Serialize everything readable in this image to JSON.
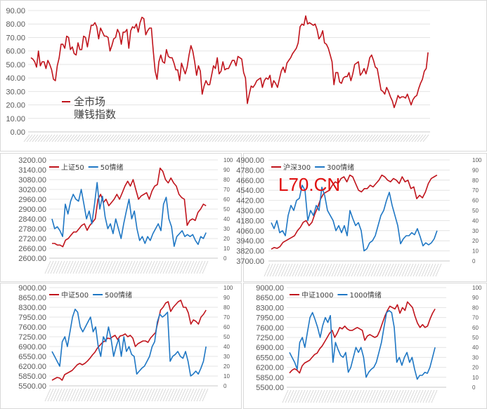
{
  "watermark": "L70.CN",
  "chart_data": [
    {
      "type": "line",
      "title": "全市场赚钱指数",
      "legend": [
        "全市场",
        "赚钱指数"
      ],
      "ylim": [
        0,
        90
      ],
      "yticks": [
        "0.00",
        "10.00",
        "20.00",
        "30.00",
        "40.00",
        "50.00",
        "60.00",
        "70.00",
        "80.00",
        "90.00"
      ],
      "colors": [
        "#c0141c"
      ],
      "series": [
        {
          "name": "全市场赚钱指数",
          "axis": "left",
          "values": [
            55,
            54,
            52,
            48,
            60,
            49,
            52,
            52,
            47,
            53,
            50,
            46,
            39,
            38,
            49,
            55,
            65,
            65,
            62,
            71,
            70,
            61,
            63,
            58,
            57,
            66,
            61,
            61,
            71,
            70,
            63,
            71,
            79,
            79,
            81,
            78,
            69,
            77,
            74,
            71,
            71,
            70,
            60,
            64,
            69,
            70,
            76,
            73,
            65,
            74,
            74,
            76,
            62,
            75,
            78,
            77,
            80,
            74,
            81,
            85,
            84,
            72,
            75,
            77,
            77,
            60,
            45,
            39,
            52,
            57,
            52,
            51,
            61,
            56,
            55,
            55,
            51,
            46,
            46,
            38,
            51,
            47,
            43,
            48,
            57,
            64,
            60,
            52,
            42,
            49,
            45,
            28,
            34,
            38,
            35,
            35,
            42,
            49,
            47,
            55,
            43,
            45,
            52,
            46,
            47,
            47,
            50,
            53,
            53,
            49,
            56,
            55,
            54,
            44,
            40,
            21,
            28,
            34,
            33,
            35,
            38,
            39,
            40,
            33,
            38,
            40,
            39,
            42,
            33,
            38,
            36,
            33,
            39,
            45,
            48,
            44,
            51,
            53,
            55,
            58,
            60,
            62,
            66,
            78,
            80,
            79,
            86,
            80,
            81,
            80,
            79,
            80,
            76,
            69,
            71,
            75,
            66,
            65,
            62,
            57,
            52,
            35,
            44,
            44,
            37,
            36,
            40,
            41,
            41,
            44,
            38,
            43,
            50,
            51,
            52,
            42,
            44,
            47,
            43,
            48,
            55,
            57,
            53,
            48,
            47,
            39,
            31,
            30,
            28,
            33,
            30,
            26,
            23,
            18,
            22,
            27,
            25,
            26,
            26,
            25,
            28,
            24,
            20,
            24,
            26,
            27,
            32,
            36,
            39,
            45,
            47,
            59
          ]
        }
      ]
    },
    {
      "type": "line",
      "legend": [
        "上证50",
        "50情绪"
      ],
      "ylim": [
        2600,
        3200
      ],
      "y2lim": [
        0,
        100
      ],
      "yticks": [
        "2600.00",
        "2660.00",
        "2720.00",
        "2780.00",
        "2840.00",
        "2900.00",
        "2960.00",
        "3020.00",
        "3080.00",
        "3140.00",
        "3200.00"
      ],
      "y2ticks": [
        "0",
        "10",
        "20",
        "30",
        "40",
        "50",
        "60",
        "70",
        "80",
        "90",
        "100"
      ],
      "colors": [
        "#c0141c",
        "#1f77c4"
      ],
      "series": [
        {
          "name": "上证50",
          "axis": "left",
          "values": [
            2690,
            2690,
            2680,
            2680,
            2670,
            2710,
            2720,
            2740,
            2760,
            2760,
            2780,
            2800,
            2810,
            2770,
            2800,
            2820,
            2840,
            2960,
            2990,
            2940,
            2960,
            2920,
            2940,
            2960,
            2990,
            2960,
            3000,
            3040,
            3070,
            3040,
            3080,
            3020,
            2960,
            2980,
            2990,
            3000,
            2960,
            3010,
            3040,
            3050,
            3150,
            3130,
            3080,
            3060,
            3090,
            3060,
            3040,
            2990,
            2970,
            2960,
            2800,
            2830,
            2840,
            2830,
            2880,
            2900,
            2930,
            2920
          ]
        },
        {
          "name": "50情绪",
          "axis": "right",
          "values": [
            40,
            30,
            32,
            28,
            22,
            55,
            45,
            58,
            65,
            60,
            58,
            70,
            55,
            40,
            48,
            35,
            55,
            77,
            50,
            63,
            42,
            30,
            35,
            25,
            40,
            30,
            20,
            35,
            48,
            60,
            40,
            48,
            30,
            18,
            22,
            15,
            22,
            18,
            25,
            30,
            35,
            28,
            55,
            62,
            40,
            32,
            12,
            22,
            25,
            28,
            22,
            24,
            22,
            24,
            18,
            14,
            22,
            20,
            26
          ]
        }
      ]
    },
    {
      "type": "line",
      "legend": [
        "沪深300",
        "300情绪"
      ],
      "ylim": [
        3700,
        4900
      ],
      "y2lim": [
        0,
        100
      ],
      "yticks": [
        "3700.00",
        "3820.00",
        "3940.00",
        "4060.00",
        "4180.00",
        "4300.00",
        "4420.00",
        "4540.00",
        "4660.00",
        "4780.00",
        "4900.00"
      ],
      "y2ticks": [
        "0",
        "10",
        "20",
        "30",
        "40",
        "50",
        "60",
        "70",
        "80",
        "90",
        "100"
      ],
      "colors": [
        "#c0141c",
        "#1f77c4"
      ],
      "series": [
        {
          "name": "沪深300",
          "axis": "left",
          "values": [
            3840,
            3860,
            3850,
            3870,
            3920,
            3940,
            3960,
            3980,
            4000,
            4060,
            4100,
            4160,
            4180,
            4120,
            4160,
            4260,
            4340,
            4440,
            4500,
            4520,
            4540,
            4600,
            4640,
            4620,
            4680,
            4700,
            4640,
            4720,
            4700,
            4620,
            4540,
            4520,
            4560,
            4560,
            4600,
            4580,
            4620,
            4660,
            4720,
            4700,
            4660,
            4640,
            4680,
            4660,
            4620,
            4700,
            4640,
            4660,
            4560,
            4580,
            4440,
            4480,
            4450,
            4520,
            4620,
            4680,
            4700,
            4720
          ]
        },
        {
          "name": "300情绪",
          "axis": "right",
          "values": [
            38,
            32,
            40,
            28,
            30,
            25,
            45,
            55,
            50,
            60,
            62,
            75,
            70,
            40,
            50,
            45,
            55,
            50,
            73,
            65,
            50,
            45,
            40,
            30,
            35,
            28,
            35,
            25,
            50,
            42,
            35,
            38,
            30,
            10,
            12,
            18,
            20,
            25,
            35,
            45,
            50,
            60,
            68,
            55,
            45,
            35,
            17,
            22,
            25,
            25,
            28,
            26,
            32,
            24,
            15,
            18,
            16,
            18,
            22,
            30
          ]
        }
      ]
    },
    {
      "type": "line",
      "legend": [
        "中证500",
        "500情绪"
      ],
      "ylim": [
        5500,
        9000
      ],
      "y2lim": [
        0,
        100
      ],
      "yticks": [
        "5500.00",
        "5850.00",
        "6200.00",
        "6550.00",
        "6900.00",
        "7250.00",
        "7600.00",
        "7950.00",
        "8300.00",
        "8650.00",
        "9000.00"
      ],
      "y2ticks": [
        "0",
        "10",
        "20",
        "30",
        "40",
        "50",
        "60",
        "70",
        "80",
        "90",
        "100"
      ],
      "colors": [
        "#c0141c",
        "#1f77c4"
      ],
      "series": [
        {
          "name": "中证500",
          "axis": "left",
          "values": [
            5700,
            5750,
            5800,
            5780,
            5700,
            5900,
            5950,
            6000,
            6050,
            6150,
            6250,
            6300,
            6250,
            6300,
            6380,
            6480,
            6600,
            6700,
            6850,
            6950,
            7050,
            7100,
            7200,
            7180,
            7250,
            7300,
            7150,
            7280,
            7300,
            7350,
            7250,
            7300,
            7200,
            6900,
            7000,
            7050,
            7100,
            7100,
            7050,
            7200,
            7300,
            7400,
            7800,
            8200,
            8300,
            8450,
            8500,
            8150,
            8300,
            8400,
            8500,
            8550,
            8300,
            8300,
            8100,
            7700,
            7850,
            7800,
            7700,
            7950,
            8050,
            8200
          ]
        },
        {
          "name": "500情绪",
          "axis": "right",
          "values": [
            35,
            30,
            25,
            20,
            45,
            50,
            40,
            55,
            70,
            78,
            75,
            60,
            55,
            60,
            65,
            70,
            55,
            60,
            40,
            30,
            50,
            45,
            60,
            48,
            30,
            40,
            48,
            30,
            50,
            35,
            40,
            32,
            30,
            12,
            15,
            18,
            20,
            25,
            30,
            40,
            45,
            65,
            73,
            70,
            72,
            75,
            25,
            30,
            32,
            35,
            30,
            28,
            35,
            25,
            10,
            12,
            15,
            12,
            18,
            25,
            40
          ]
        }
      ]
    },
    {
      "type": "line",
      "legend": [
        "中证1000",
        "1000情绪"
      ],
      "ylim": [
        5500,
        9000
      ],
      "y2lim": [
        0,
        100
      ],
      "yticks": [
        "5500.00",
        "5850.00",
        "6200.00",
        "6550.00",
        "6900.00",
        "7250.00",
        "7600.00",
        "7950.00",
        "8300.00",
        "8650.00",
        "9000.00"
      ],
      "y2ticks": [
        "0",
        "10",
        "20",
        "30",
        "40",
        "50",
        "60",
        "70",
        "80",
        "90",
        "100"
      ],
      "colors": [
        "#c0141c",
        "#1f77c4"
      ],
      "series": [
        {
          "name": "中证1000",
          "axis": "left",
          "values": [
            6000,
            6100,
            6150,
            6100,
            6000,
            6250,
            6350,
            6400,
            6450,
            6550,
            6650,
            6700,
            6850,
            6950,
            7100,
            7250,
            7400,
            7500,
            7250,
            7400,
            7600,
            7550,
            7650,
            7550,
            7500,
            7500,
            7550,
            7600,
            7550,
            7500,
            7150,
            7300,
            7350,
            7300,
            7250,
            7300,
            7500,
            7750,
            8000,
            8200,
            8350,
            8300,
            8250,
            8400,
            8100,
            8300,
            8200,
            8500,
            8400,
            8300,
            8000,
            7750,
            7600,
            7700,
            7600,
            7650,
            7900,
            8100,
            8250
          ]
        },
        {
          "name": "1000情绪",
          "axis": "right",
          "values": [
            35,
            30,
            25,
            18,
            45,
            50,
            40,
            55,
            70,
            75,
            68,
            60,
            50,
            62,
            70,
            65,
            72,
            25,
            45,
            38,
            32,
            30,
            35,
            15,
            20,
            30,
            40,
            35,
            40,
            30,
            10,
            15,
            18,
            20,
            25,
            35,
            45,
            60,
            75,
            77,
            75,
            60,
            25,
            30,
            22,
            30,
            35,
            25,
            30,
            18,
            8,
            12,
            12,
            15,
            14,
            20,
            30,
            40
          ]
        }
      ]
    }
  ]
}
